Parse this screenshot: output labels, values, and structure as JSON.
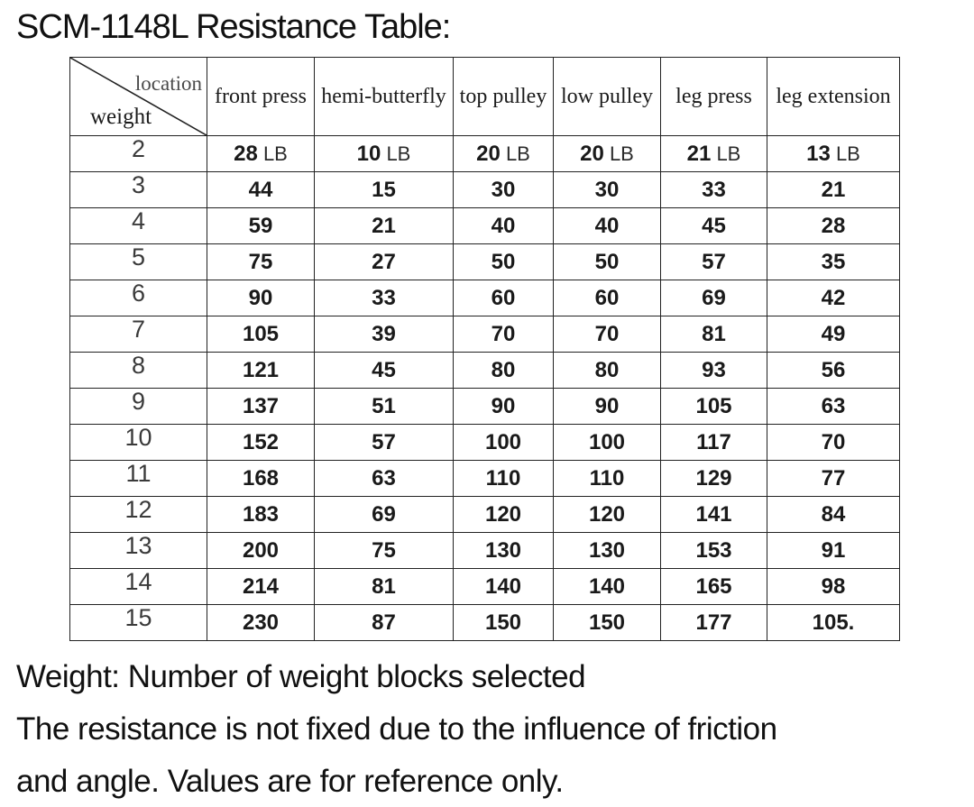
{
  "title": "SCM-1148L Resistance Table:",
  "table": {
    "corner": {
      "top_right_label": "location",
      "bottom_left_label": "weight"
    },
    "columns": [
      "front press",
      "hemi-butterfly",
      "top pulley",
      "low pulley",
      "leg press",
      "leg extension"
    ],
    "rows": [
      {
        "weight": "2",
        "unit": "LB",
        "values": [
          "28",
          "10",
          "20",
          "20",
          "21",
          "13"
        ]
      },
      {
        "weight": "3",
        "values": [
          "44",
          "15",
          "30",
          "30",
          "33",
          "21"
        ]
      },
      {
        "weight": "4",
        "values": [
          "59",
          "21",
          "40",
          "40",
          "45",
          "28"
        ]
      },
      {
        "weight": "5",
        "values": [
          "75",
          "27",
          "50",
          "50",
          "57",
          "35"
        ]
      },
      {
        "weight": "6",
        "values": [
          "90",
          "33",
          "60",
          "60",
          "69",
          "42"
        ]
      },
      {
        "weight": "7",
        "values": [
          "105",
          "39",
          "70",
          "70",
          "81",
          "49"
        ]
      },
      {
        "weight": "8",
        "values": [
          "121",
          "45",
          "80",
          "80",
          "93",
          "56"
        ]
      },
      {
        "weight": "9",
        "values": [
          "137",
          "51",
          "90",
          "90",
          "105",
          "63"
        ]
      },
      {
        "weight": "10",
        "values": [
          "152",
          "57",
          "100",
          "100",
          "117",
          "70"
        ]
      },
      {
        "weight": "11",
        "values": [
          "168",
          "63",
          "110",
          "110",
          "129",
          "77"
        ]
      },
      {
        "weight": "12",
        "values": [
          "183",
          "69",
          "120",
          "120",
          "141",
          "84"
        ]
      },
      {
        "weight": "13",
        "values": [
          "200",
          "75",
          "130",
          "130",
          "153",
          "91"
        ]
      },
      {
        "weight": "14",
        "values": [
          "214",
          "81",
          "140",
          "140",
          "165",
          "98"
        ]
      },
      {
        "weight": "15",
        "values": [
          "230",
          "87",
          "150",
          "150",
          "177",
          "105."
        ]
      }
    ]
  },
  "notes": {
    "line1": "Weight: Number of weight blocks selected",
    "line2": "The resistance is not fixed due to the influence of friction",
    "line3": "and angle. Values are for reference only."
  },
  "colors": {
    "text": "#111111",
    "border": "#222222",
    "corner_top_label": "#4a4a4a"
  }
}
